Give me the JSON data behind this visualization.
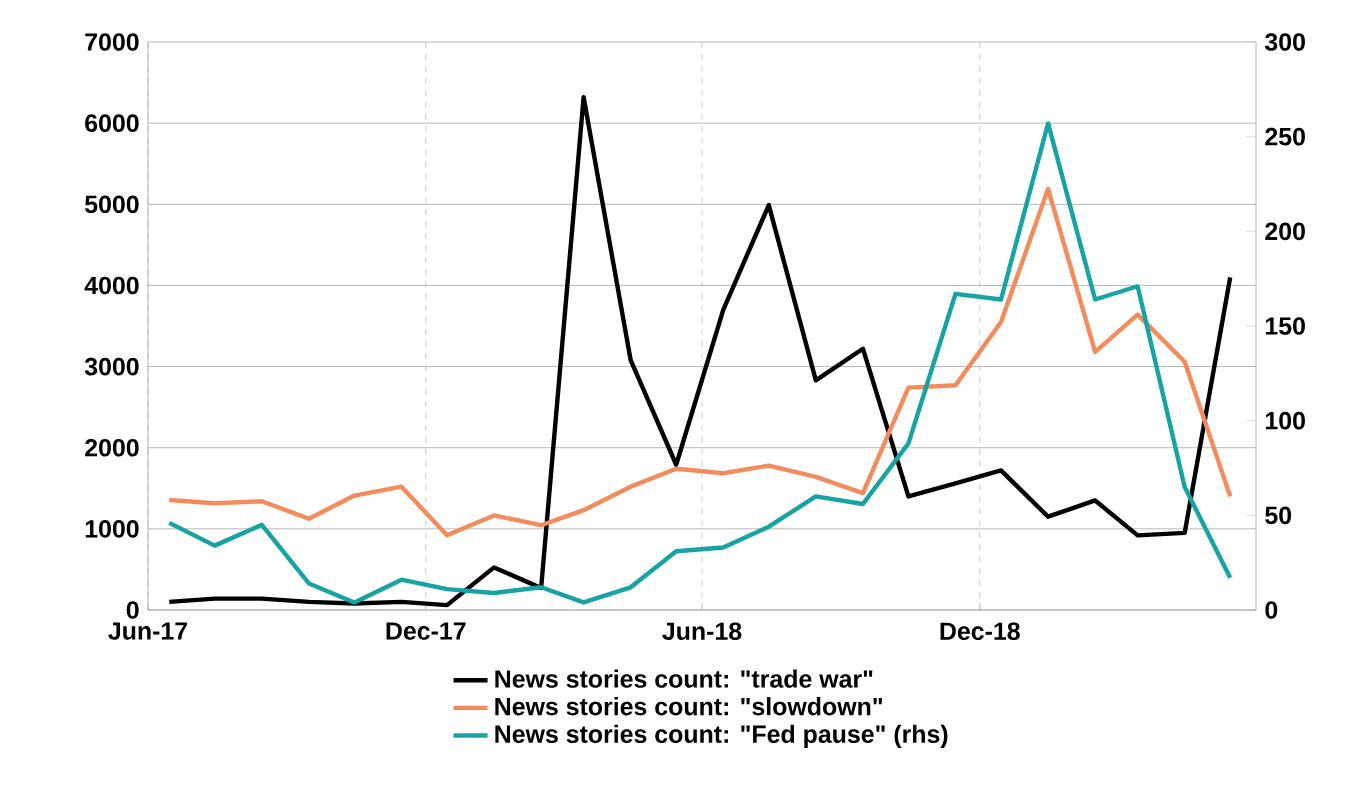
{
  "chart_data": {
    "type": "line",
    "x": [
      "2017-06-15",
      "2017-07-15",
      "2017-08-15",
      "2017-09-15",
      "2017-10-15",
      "2017-11-15",
      "2017-12-15",
      "2018-01-15",
      "2018-02-15",
      "2018-03-15",
      "2018-04-15",
      "2018-05-15",
      "2018-06-15",
      "2018-07-15",
      "2018-08-15",
      "2018-09-15",
      "2018-10-15",
      "2018-11-15",
      "2018-12-15",
      "2019-01-15",
      "2019-02-15",
      "2019-03-15",
      "2019-04-15",
      "2019-05-15"
    ],
    "series": [
      {
        "name": "News stories count: \"trade war\"",
        "color": "#000000",
        "values": [
          100,
          140,
          140,
          100,
          80,
          100,
          60,
          525,
          270,
          6320,
          3080,
          1790,
          3700,
          4990,
          2830,
          3220,
          1400,
          1560,
          1720,
          1150,
          1350,
          920,
          950,
          4100
        ]
      },
      {
        "name": "News stories count: \"slowdown\"",
        "color": "#f28c5c",
        "values": [
          1355,
          1315,
          1340,
          1125,
          1410,
          1520,
          920,
          1165,
          1045,
          1230,
          1520,
          1740,
          1685,
          1780,
          1640,
          1440,
          2740,
          2770,
          3550,
          5190,
          3180,
          3640,
          3060,
          1400
        ]
      },
      {
        "name": "News stories count: \"Fed pause\" (rhs)",
        "color": "#17a3a3",
        "axis": "y2",
        "values": [
          46,
          34,
          45,
          14,
          4,
          16,
          11,
          9,
          12,
          4,
          12,
          31,
          33,
          44,
          60,
          56,
          88,
          167,
          164,
          257,
          164,
          171,
          65,
          17
        ]
      }
    ],
    "xlim": [
      "2017-06-01",
      "2019-06-01"
    ],
    "xticks": [
      {
        "value": "2017-06-01",
        "label": "Jun-17"
      },
      {
        "value": "2017-12-01",
        "label": "Dec-17"
      },
      {
        "value": "2018-06-01",
        "label": "Jun-18"
      },
      {
        "value": "2018-12-01",
        "label": "Dec-18"
      }
    ],
    "ylim": [
      0,
      7000
    ],
    "yticks": [
      0,
      1000,
      2000,
      3000,
      4000,
      5000,
      6000,
      7000
    ],
    "y2lim": [
      0,
      300
    ],
    "y2ticks": [
      0,
      50,
      100,
      150,
      200,
      250,
      300
    ],
    "grid": true,
    "legend": "bottom"
  }
}
